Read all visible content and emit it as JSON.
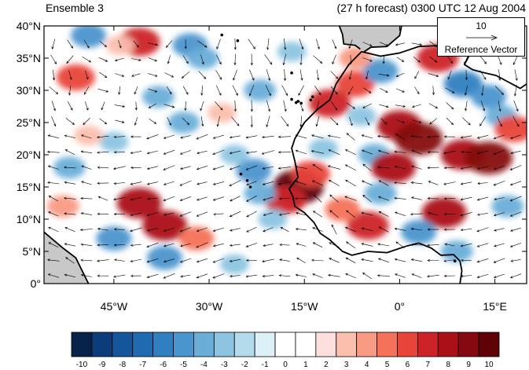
{
  "header": {
    "ensemble_label": "Ensemble 3",
    "forecast_label": "(27 h forecast) 0300 UTC 12 Aug 2004"
  },
  "axes": {
    "lat_labels": [
      "40°N",
      "35°N",
      "30°N",
      "25°N",
      "20°N",
      "15°N",
      "10°N",
      "5°N",
      "0°"
    ],
    "lon_labels": [
      "45°W",
      "30°W",
      "15°W",
      "0°",
      "15°E"
    ]
  },
  "reference_vector": {
    "value": "10",
    "label": "Reference Vector"
  },
  "colorbar": {
    "labels": [
      "-10",
      "-9",
      "-8",
      "-7",
      "-6",
      "-5",
      "-4",
      "-3",
      "-2",
      "-1",
      "0",
      "1",
      "2",
      "3",
      "4",
      "5",
      "6",
      "7",
      "8",
      "9",
      "10"
    ],
    "colors": [
      "#08234a",
      "#0c3d7a",
      "#15559b",
      "#1f6ab0",
      "#2f7fc1",
      "#4b95ce",
      "#6aaed8",
      "#8cc4e1",
      "#b4dbec",
      "#dcf0f8",
      "#ffffff",
      "#ffffff",
      "#fde0dd",
      "#fbbfae",
      "#f99a83",
      "#f4715a",
      "#e8453a",
      "#cc2228",
      "#ab1018",
      "#860810",
      "#5e0208"
    ]
  },
  "map": {
    "lon_range": [
      -56,
      20
    ],
    "lat_range": [
      0,
      40
    ],
    "colors": {
      "land": "#c8c8c8",
      "coast": "#000000",
      "vector": "#000000"
    },
    "anomaly_blobs": [
      {
        "lon": -41,
        "lat": 37.5,
        "value": 7
      },
      {
        "lon": -51,
        "lat": 32,
        "value": 6
      },
      {
        "lon": -44,
        "lat": 37,
        "value": 3
      },
      {
        "lon": -49,
        "lat": 38.5,
        "value": -5
      },
      {
        "lon": -33,
        "lat": 37,
        "value": -5
      },
      {
        "lon": -31,
        "lat": 35,
        "value": -4
      },
      {
        "lon": -38,
        "lat": 29,
        "value": -4
      },
      {
        "lon": -28,
        "lat": 26.5,
        "value": 3
      },
      {
        "lon": -34,
        "lat": 25,
        "value": -4
      },
      {
        "lon": -45,
        "lat": 22,
        "value": -3
      },
      {
        "lon": -49,
        "lat": 23,
        "value": 3
      },
      {
        "lon": -52,
        "lat": 18,
        "value": -4
      },
      {
        "lon": -41,
        "lat": 12.5,
        "value": 8
      },
      {
        "lon": -37,
        "lat": 9,
        "value": 8
      },
      {
        "lon": -32,
        "lat": 7,
        "value": 5
      },
      {
        "lon": -45,
        "lat": 7,
        "value": -5
      },
      {
        "lon": -37,
        "lat": 4,
        "value": -5
      },
      {
        "lon": -26,
        "lat": 3,
        "value": -3
      },
      {
        "lon": -53,
        "lat": 12,
        "value": 4
      },
      {
        "lon": -16,
        "lat": 15,
        "value": 10
      },
      {
        "lon": -18,
        "lat": 13,
        "value": 7
      },
      {
        "lon": -14,
        "lat": 17,
        "value": 6
      },
      {
        "lon": -22,
        "lat": 14,
        "value": -4
      },
      {
        "lon": -23,
        "lat": 17.5,
        "value": -5
      },
      {
        "lon": -20,
        "lat": 10,
        "value": -3
      },
      {
        "lon": -11,
        "lat": 28,
        "value": 7
      },
      {
        "lon": -7,
        "lat": 31,
        "value": 6
      },
      {
        "lon": -3,
        "lat": 33,
        "value": -5
      },
      {
        "lon": -7,
        "lat": 35,
        "value": 4
      },
      {
        "lon": 6,
        "lat": 35,
        "value": 7
      },
      {
        "lon": 10,
        "lat": 31,
        "value": -6
      },
      {
        "lon": 14,
        "lat": 29,
        "value": -5
      },
      {
        "lon": 16,
        "lat": 26,
        "value": -4
      },
      {
        "lon": 0,
        "lat": 24.5,
        "value": 8
      },
      {
        "lon": 3,
        "lat": 22.5,
        "value": 9
      },
      {
        "lon": -4,
        "lat": 20,
        "value": -4
      },
      {
        "lon": -1,
        "lat": 18,
        "value": 8
      },
      {
        "lon": 10,
        "lat": 20,
        "value": 8
      },
      {
        "lon": 14,
        "lat": 19.5,
        "value": 9
      },
      {
        "lon": 7,
        "lat": 11,
        "value": 8
      },
      {
        "lon": 3,
        "lat": 8,
        "value": -5
      },
      {
        "lon": 9,
        "lat": 5,
        "value": -4
      },
      {
        "lon": -5,
        "lat": 9,
        "value": 7
      },
      {
        "lon": -9,
        "lat": 11.5,
        "value": 5
      },
      {
        "lon": -3,
        "lat": 14,
        "value": -4
      },
      {
        "lon": 17,
        "lat": 12,
        "value": -4
      },
      {
        "lon": 18,
        "lat": 24,
        "value": 6
      },
      {
        "lon": -12,
        "lat": 21,
        "value": -3
      },
      {
        "lon": -6,
        "lat": 26,
        "value": -3
      },
      {
        "lon": -22,
        "lat": 30,
        "value": -4
      },
      {
        "lon": -17,
        "lat": 36,
        "value": -3
      },
      {
        "lon": -26,
        "lat": 20,
        "value": -3
      }
    ],
    "coastlines": [
      [
        [
          -56,
          8
        ],
        [
          -53,
          5.5
        ],
        [
          -51,
          4
        ],
        [
          -50,
          2
        ],
        [
          -49,
          0
        ]
      ],
      [
        [
          -6,
          36
        ],
        [
          -8,
          34
        ],
        [
          -10,
          31
        ],
        [
          -11,
          28.5
        ],
        [
          -13,
          27
        ],
        [
          -15,
          25
        ],
        [
          -16.5,
          22.5
        ],
        [
          -17,
          21
        ],
        [
          -16.5,
          19
        ],
        [
          -16,
          16.5
        ],
        [
          -17.4,
          14.7
        ],
        [
          -16.8,
          13.5
        ],
        [
          -16.5,
          12
        ],
        [
          -15,
          11
        ],
        [
          -13.5,
          9.5
        ],
        [
          -12.5,
          7.8
        ],
        [
          -11,
          6.8
        ],
        [
          -9,
          5
        ],
        [
          -7.5,
          4.4
        ],
        [
          -5,
          5
        ],
        [
          -2,
          4.8
        ],
        [
          1,
          5.8
        ],
        [
          3,
          6.3
        ],
        [
          5,
          5.5
        ],
        [
          6.5,
          4.4
        ],
        [
          8.5,
          4.5
        ],
        [
          9.5,
          3.5
        ],
        [
          9.8,
          2
        ],
        [
          9.5,
          0
        ]
      ],
      [
        [
          -6,
          36
        ],
        [
          -3,
          35.3
        ],
        [
          0,
          35.8
        ],
        [
          3,
          36.8
        ],
        [
          7,
          37
        ],
        [
          10,
          37.2
        ],
        [
          11,
          35.5
        ],
        [
          10.2,
          34
        ],
        [
          11.5,
          33.2
        ],
        [
          13,
          32.8
        ],
        [
          15.2,
          32.3
        ],
        [
          19,
          30.3
        ],
        [
          20,
          31
        ]
      ],
      [
        [
          -9.5,
          40
        ],
        [
          -9,
          38.7
        ],
        [
          -8.8,
          37.2
        ],
        [
          -7,
          37
        ],
        [
          -6.2,
          36.4
        ]
      ],
      [
        [
          -5.6,
          36
        ],
        [
          -4.5,
          36.7
        ],
        [
          -2,
          36.8
        ],
        [
          0,
          38.5
        ],
        [
          0.3,
          40
        ]
      ],
      [
        [
          13.5,
          40
        ],
        [
          15.5,
          38
        ],
        [
          16,
          39
        ],
        [
          17,
          40
        ]
      ]
    ],
    "land_areas": [
      [
        [
          -56,
          0
        ],
        [
          -56,
          8
        ],
        [
          -53,
          5.5
        ],
        [
          -51,
          4
        ],
        [
          -50,
          2
        ],
        [
          -49,
          0
        ]
      ],
      [
        [
          -9.5,
          40
        ],
        [
          -9,
          38.7
        ],
        [
          -8.8,
          37.2
        ],
        [
          -7,
          37
        ],
        [
          -6.2,
          36.4
        ],
        [
          -5.6,
          36
        ],
        [
          -4.5,
          36.7
        ],
        [
          -2,
          36.8
        ],
        [
          0,
          38.5
        ],
        [
          0.3,
          40
        ]
      ],
      [
        [
          13.5,
          40
        ],
        [
          15.5,
          38
        ],
        [
          16,
          39
        ],
        [
          17,
          40
        ]
      ]
    ],
    "islands": [
      [
        -24,
        16
      ],
      [
        -23.5,
        15
      ],
      [
        -25,
        17
      ],
      [
        -16,
        28.3
      ],
      [
        -15.5,
        28
      ],
      [
        -17,
        28.6
      ],
      [
        -14,
        28.5
      ],
      [
        -13.7,
        29
      ],
      [
        -17,
        32.7
      ],
      [
        -25.5,
        37.7
      ],
      [
        -28,
        38.6
      ],
      [
        8.7,
        3.5
      ],
      [
        -16.3,
        28.1
      ]
    ]
  }
}
